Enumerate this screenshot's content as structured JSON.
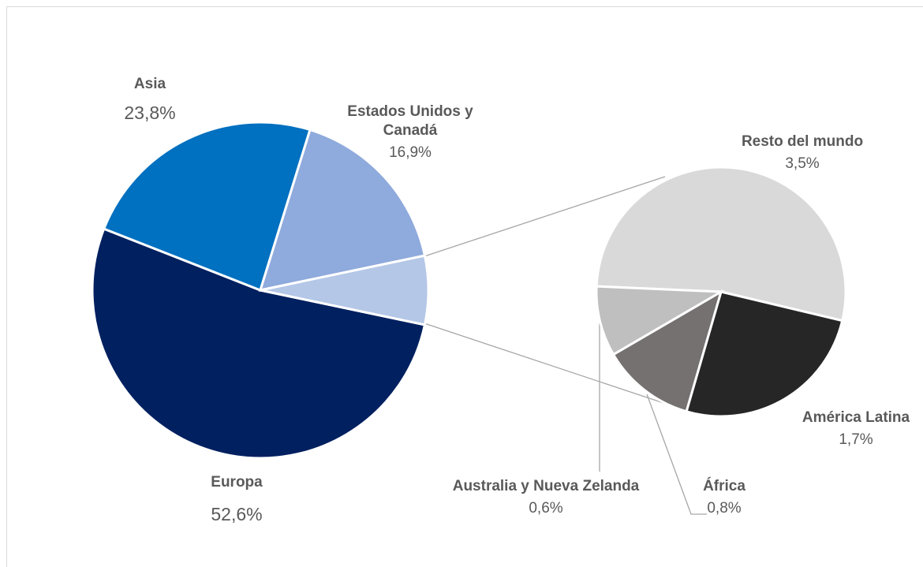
{
  "chart_data": {
    "type": "pie-of-pie",
    "categories": [
      "Europa",
      "Asia",
      "Estados Unidos y Canadá"
    ],
    "values": [
      52.6,
      23.8,
      16.9
    ],
    "value_labels": [
      "52,6%",
      "23,8%",
      "16,9%"
    ],
    "colors": [
      "#002060",
      "#0070c0",
      "#8faadc"
    ],
    "other_color": "#b4c7e7",
    "secondary": {
      "categories": [
        "Resto del mundo",
        "América Latina",
        "África",
        "Australia y Nueva Zelanda"
      ],
      "values": [
        3.5,
        1.7,
        0.8,
        0.6
      ],
      "value_labels": [
        "3,5%",
        "1,7%",
        "0,8%",
        "0,6%"
      ],
      "colors": [
        "#d9d9d9",
        "#262626",
        "#767171",
        "#bfbfbf"
      ]
    }
  }
}
